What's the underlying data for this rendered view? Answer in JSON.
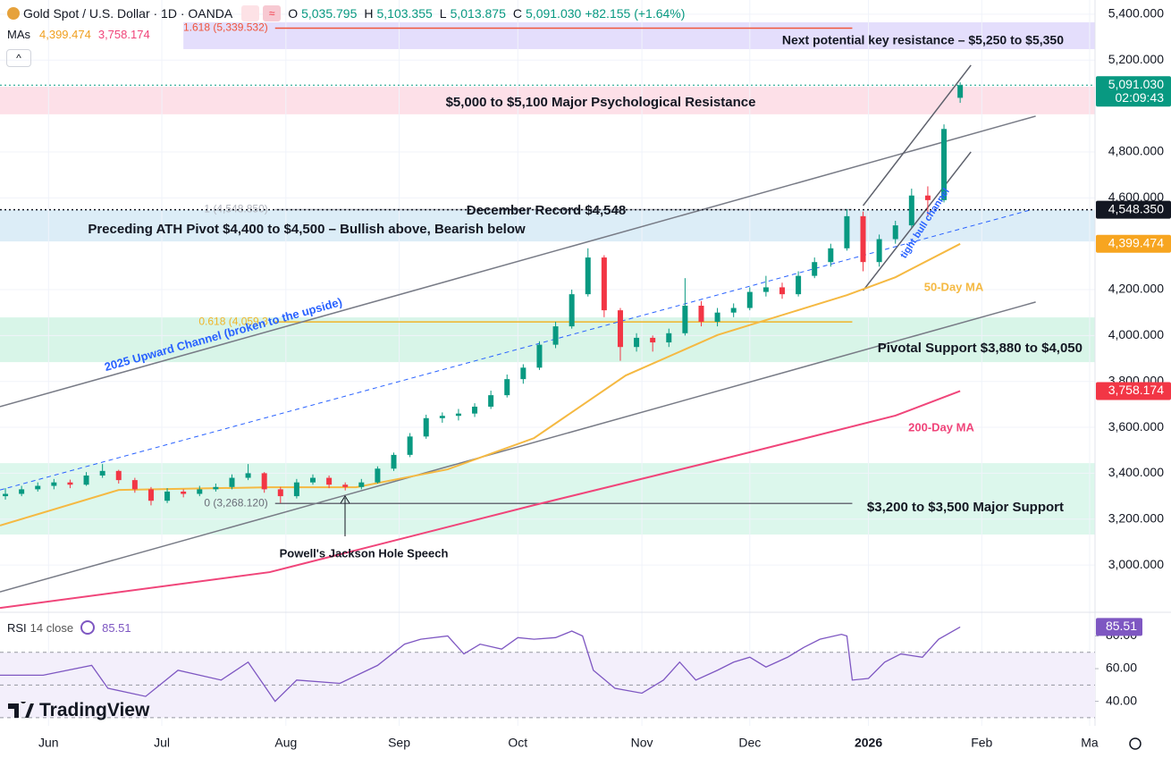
{
  "header": {
    "title": "Gold Spot / U.S. Dollar · 1D · OANDA",
    "ohlc": [
      {
        "k": "O",
        "v": "5,035.795"
      },
      {
        "k": "H",
        "v": "5,103.355"
      },
      {
        "k": "L",
        "v": "5,013.875"
      },
      {
        "k": "C",
        "v": "5,091.030"
      }
    ],
    "change": "+82.155 (+1.64%)",
    "mas_label": "MAs",
    "mas": [
      "4,399.474",
      "3,758.174"
    ],
    "rsi_label": "RSI",
    "rsi_params": "14 close",
    "rsi_value": "85.51",
    "logo": "TradingView"
  },
  "chart_data": {
    "type": "candlestick",
    "up_color": "#089981",
    "down_color": "#f23645",
    "xlim": [
      -9,
      194
    ],
    "ylim": [
      2794,
      5462
    ],
    "xticks": [
      {
        "value": 0,
        "label": "Jun"
      },
      {
        "value": 21,
        "label": "Jul"
      },
      {
        "value": 44,
        "label": "Aug"
      },
      {
        "value": 65,
        "label": "Sep"
      },
      {
        "value": 87,
        "label": "Oct"
      },
      {
        "value": 110,
        "label": "Nov"
      },
      {
        "value": 130,
        "label": "Dec"
      },
      {
        "value": 152,
        "label": "2026"
      },
      {
        "value": 173,
        "label": "Feb"
      },
      {
        "value": 193,
        "label": "Ma"
      }
    ],
    "yticks": [
      {
        "value": 5400,
        "label": "5,400.000"
      },
      {
        "value": 5200,
        "label": "5,200.000"
      },
      {
        "value": 4800,
        "label": "4,800.000"
      },
      {
        "value": 4600,
        "label": "4,600.000"
      },
      {
        "value": 4200,
        "label": "4,200.000"
      },
      {
        "value": 4000,
        "label": "4,000.000"
      },
      {
        "value": 3800,
        "label": "3,800.000"
      },
      {
        "value": 3600,
        "label": "3,600.000"
      },
      {
        "value": 3400,
        "label": "3,400.000"
      },
      {
        "value": 3200,
        "label": "3,200.000"
      },
      {
        "value": 3000,
        "label": "3,000.000"
      }
    ],
    "grid": true,
    "x": [
      -8,
      -5,
      -2,
      1,
      4,
      7,
      10,
      13,
      16,
      19,
      22,
      25,
      28,
      31,
      34,
      37,
      40,
      43,
      46,
      49,
      52,
      55,
      58,
      61,
      64,
      67,
      70,
      73,
      76,
      79,
      82,
      85,
      88,
      91,
      94,
      97,
      100,
      103,
      106,
      109,
      112,
      115,
      118,
      121,
      124,
      127,
      130,
      133,
      136,
      139,
      142,
      145,
      148,
      151,
      154,
      157,
      160,
      163,
      166,
      169
    ],
    "ohlc": [
      [
        3300,
        3335,
        3285,
        3310
      ],
      [
        3310,
        3345,
        3300,
        3330
      ],
      [
        3330,
        3360,
        3320,
        3345
      ],
      [
        3345,
        3375,
        3330,
        3360
      ],
      [
        3360,
        3372,
        3335,
        3350
      ],
      [
        3350,
        3405,
        3345,
        3390
      ],
      [
        3390,
        3440,
        3380,
        3410
      ],
      [
        3410,
        3415,
        3355,
        3370
      ],
      [
        3370,
        3380,
        3315,
        3330
      ],
      [
        3330,
        3340,
        3260,
        3280
      ],
      [
        3280,
        3335,
        3270,
        3320
      ],
      [
        3320,
        3330,
        3295,
        3310
      ],
      [
        3310,
        3345,
        3300,
        3330
      ],
      [
        3330,
        3355,
        3320,
        3340
      ],
      [
        3340,
        3395,
        3330,
        3380
      ],
      [
        3380,
        3440,
        3370,
        3400
      ],
      [
        3400,
        3405,
        3315,
        3330
      ],
      [
        3330,
        3340,
        3270,
        3300
      ],
      [
        3300,
        3375,
        3290,
        3360
      ],
      [
        3360,
        3395,
        3350,
        3380
      ],
      [
        3380,
        3390,
        3335,
        3350
      ],
      [
        3350,
        3360,
        3325,
        3340
      ],
      [
        3340,
        3375,
        3330,
        3360
      ],
      [
        3360,
        3430,
        3355,
        3420
      ],
      [
        3420,
        3490,
        3410,
        3480
      ],
      [
        3480,
        3575,
        3470,
        3560
      ],
      [
        3560,
        3655,
        3550,
        3640
      ],
      [
        3640,
        3665,
        3620,
        3650
      ],
      [
        3650,
        3680,
        3630,
        3660
      ],
      [
        3660,
        3705,
        3645,
        3690
      ],
      [
        3690,
        3760,
        3680,
        3740
      ],
      [
        3740,
        3830,
        3730,
        3810
      ],
      [
        3810,
        3875,
        3790,
        3860
      ],
      [
        3860,
        3975,
        3850,
        3960
      ],
      [
        3960,
        4060,
        3945,
        4040
      ],
      [
        4040,
        4200,
        4030,
        4180
      ],
      [
        4180,
        4380,
        4170,
        4340
      ],
      [
        4340,
        4350,
        4080,
        4110
      ],
      [
        4110,
        4120,
        3890,
        3950
      ],
      [
        3950,
        4010,
        3930,
        3990
      ],
      [
        3990,
        4000,
        3930,
        3970
      ],
      [
        3970,
        4030,
        3950,
        4010
      ],
      [
        4010,
        4250,
        4000,
        4130
      ],
      [
        4130,
        4150,
        4040,
        4060
      ],
      [
        4060,
        4120,
        4040,
        4100
      ],
      [
        4100,
        4140,
        4080,
        4120
      ],
      [
        4120,
        4210,
        4110,
        4190
      ],
      [
        4190,
        4260,
        4170,
        4210
      ],
      [
        4210,
        4230,
        4160,
        4180
      ],
      [
        4180,
        4280,
        4170,
        4260
      ],
      [
        4260,
        4340,
        4250,
        4320
      ],
      [
        4320,
        4400,
        4300,
        4380
      ],
      [
        4380,
        4550,
        4370,
        4520
      ],
      [
        4520,
        4540,
        4280,
        4320
      ],
      [
        4320,
        4440,
        4300,
        4420
      ],
      [
        4420,
        4500,
        4400,
        4480
      ],
      [
        4480,
        4640,
        4470,
        4610
      ],
      [
        4610,
        4650,
        4520,
        4590
      ],
      [
        4590,
        4920,
        4580,
        4900
      ],
      [
        5035.795,
        5103.355,
        5013.875,
        5091.03
      ]
    ],
    "mas": [
      {
        "name": "50-Day MA",
        "color": "#f5b942",
        "x": [
          -9,
          13,
          41,
          57,
          74,
          90,
          107,
          124,
          140,
          148,
          157,
          169
        ],
        "values": [
          3172,
          3327,
          3339,
          3339,
          3417,
          3553,
          3826,
          4002,
          4118,
          4176,
          4254,
          4399.474
        ]
      },
      {
        "name": "200-Day MA",
        "color": "#f0457a",
        "x": [
          -9,
          41,
          90,
          124,
          157,
          169
        ],
        "values": [
          2813,
          2969,
          3261,
          3456,
          3651,
          3758.174
        ]
      }
    ],
    "zones": [
      {
        "label": "Next potential key resistance – $5,250 to $5,350",
        "low": 5248,
        "high": 5365,
        "start": 25,
        "color": "#e4defc"
      },
      {
        "label": "$5,000 to $5,100 Major Psychological Resistance",
        "low": 4964,
        "high": 5084,
        "color": "#fde0e8"
      },
      {
        "label": "Preceding ATH Pivot $4,400 to $4,500 – Bullish above, Bearish below",
        "low": 4410,
        "high": 4547,
        "color": "#dcedf7"
      },
      {
        "label": "Pivotal Support $3,880 to $4,050",
        "low": 3884,
        "high": 4079,
        "color": "#d8f5e8"
      },
      {
        "label": "$3,200 to $3,500 Major Support",
        "low": 3133,
        "high": 3444,
        "color": "#dcf7ec"
      }
    ],
    "fib": [
      {
        "label": "1.618 (5,339.532)",
        "value": 5339.532,
        "x": [
          42,
          149
        ],
        "color": "#f0553a"
      },
      {
        "label": "0.618 (4,059.3",
        "value": 4059.3,
        "x": [
          42,
          149
        ],
        "color": "#f0b429"
      },
      {
        "label": "1 (4,548.850)",
        "value": 4548.85,
        "x": [
          42,
          149
        ],
        "color": "#b2b5be"
      },
      {
        "label": "0 (3,268.120)",
        "value": 3268.12,
        "x": [
          42,
          149
        ],
        "color": "#6a6d78"
      }
    ],
    "trendlines": [
      {
        "x": [
          -9,
          183
        ],
        "y": [
          3690,
          4956
        ],
        "color": "#787b86",
        "dashed": false
      },
      {
        "x": [
          -9,
          183
        ],
        "y": [
          2883,
          4146
        ],
        "color": "#787b86",
        "dashed": false
      },
      {
        "x": [
          151,
          171
        ],
        "y": [
          4566,
          5178
        ],
        "color": "#5d606b",
        "dashed": false
      },
      {
        "x": [
          151,
          171
        ],
        "y": [
          4196,
          4800
        ],
        "color": "#5d606b",
        "dashed": false
      },
      {
        "x": [
          -9,
          182
        ],
        "y": [
          3327,
          4547
        ],
        "color": "#2962ff",
        "dashed": true
      }
    ],
    "annotations": [
      "December Record $4,548",
      "Powell's Jackson Hole Speech",
      "2025 Upward Channel (broken to the upside)",
      "tight bull channel"
    ],
    "price_tags": [
      {
        "value": 5091.03,
        "label": "5,091.030",
        "sub": "02:09:43",
        "color": "#089981"
      },
      {
        "value": 4548.35,
        "label": "4,548.350",
        "color": "#131722"
      },
      {
        "value": 4399.474,
        "label": "4,399.474",
        "color": "#f7a520"
      },
      {
        "value": 3758.174,
        "label": "3,758.174",
        "color": "#f23645"
      }
    ],
    "rsi": {
      "color": "#7e57c2",
      "ylim": [
        25,
        94.5
      ],
      "band": [
        30,
        70
      ],
      "levels": [
        30,
        50,
        70
      ],
      "yticks": [
        {
          "value": 40,
          "label": "40.00"
        },
        {
          "value": 60,
          "label": "60.00"
        },
        {
          "value": 80,
          "label": "80.00"
        }
      ],
      "x": [
        -9,
        -1,
        8,
        11,
        18,
        24,
        32,
        37,
        42,
        46,
        54,
        61,
        66,
        69,
        74,
        77,
        80,
        84,
        87,
        90,
        94,
        97,
        99,
        101,
        105,
        110,
        114,
        117,
        120,
        124,
        127,
        130,
        133,
        137,
        140,
        143,
        147,
        148,
        149,
        152,
        155,
        158,
        162,
        165,
        169
      ],
      "values": [
        56,
        56,
        62,
        48,
        43,
        59,
        53,
        64,
        40,
        53,
        51,
        62,
        75,
        78,
        80,
        69,
        75,
        72,
        79,
        78,
        79,
        83,
        80,
        59,
        48,
        45,
        53,
        64,
        53,
        59,
        64,
        67,
        61,
        67,
        73,
        78,
        81,
        80,
        53,
        54,
        64,
        69,
        67,
        78,
        85.51
      ],
      "tag": {
        "value": 85.51,
        "label": "85.51"
      }
    }
  }
}
